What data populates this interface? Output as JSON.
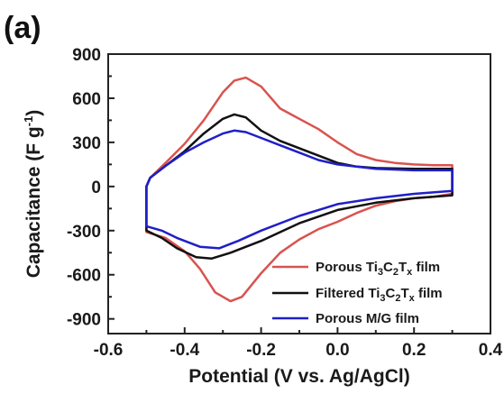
{
  "panel_label": "(a)",
  "chart_data": {
    "type": "line",
    "xlabel": "Potential (V vs. Ag/AgCl)",
    "ylabel": "Capacitance (F g-1)",
    "ylabel_parts": {
      "base": "Capacitance (F g",
      "sup": "-1",
      "end": ")"
    },
    "xlim": [
      -0.6,
      0.4
    ],
    "ylim": [
      -1000,
      900
    ],
    "xticks": [
      -0.6,
      -0.4,
      -0.2,
      0.0,
      0.2,
      0.4
    ],
    "xtick_labels": [
      "-0.6",
      "-0.4",
      "-0.2",
      "0.0",
      "0.2",
      "0.4"
    ],
    "yticks": [
      -900,
      -600,
      -300,
      0,
      300,
      600,
      900
    ],
    "ytick_labels": [
      "-900",
      "-600",
      "-300",
      "0",
      "300",
      "600",
      "900"
    ],
    "grid": false,
    "legend_position": "bottom-right",
    "series": [
      {
        "name": "Porous Ti3C2Tx film",
        "name_parts": {
          "pre": "Porous Ti",
          "s1": "3",
          "mid": "C",
          "s2": "2",
          "mid2": "T",
          "s3": "x",
          "post": " film"
        },
        "color": "#d9534f",
        "points": [
          [
            -0.5,
            -310
          ],
          [
            -0.5,
            0
          ],
          [
            -0.49,
            60
          ],
          [
            -0.45,
            160
          ],
          [
            -0.4,
            290
          ],
          [
            -0.35,
            450
          ],
          [
            -0.3,
            640
          ],
          [
            -0.27,
            720
          ],
          [
            -0.24,
            740
          ],
          [
            -0.2,
            680
          ],
          [
            -0.15,
            530
          ],
          [
            -0.1,
            460
          ],
          [
            -0.05,
            390
          ],
          [
            0.0,
            300
          ],
          [
            0.05,
            220
          ],
          [
            0.1,
            180
          ],
          [
            0.15,
            160
          ],
          [
            0.2,
            150
          ],
          [
            0.25,
            145
          ],
          [
            0.3,
            145
          ],
          [
            0.3,
            -50
          ],
          [
            0.25,
            -70
          ],
          [
            0.2,
            -80
          ],
          [
            0.15,
            -100
          ],
          [
            0.1,
            -130
          ],
          [
            0.05,
            -180
          ],
          [
            0.0,
            -240
          ],
          [
            -0.05,
            -290
          ],
          [
            -0.1,
            -360
          ],
          [
            -0.15,
            -450
          ],
          [
            -0.2,
            -590
          ],
          [
            -0.25,
            -750
          ],
          [
            -0.28,
            -780
          ],
          [
            -0.32,
            -720
          ],
          [
            -0.36,
            -560
          ],
          [
            -0.4,
            -440
          ],
          [
            -0.45,
            -350
          ],
          [
            -0.5,
            -310
          ]
        ]
      },
      {
        "name": "Filtered Ti3C2Tx film",
        "name_parts": {
          "pre": "Filtered Ti",
          "s1": "3",
          "mid": "C",
          "s2": "2",
          "mid2": "T",
          "s3": "x",
          "post": " film"
        },
        "color": "#111111",
        "points": [
          [
            -0.5,
            -300
          ],
          [
            -0.5,
            0
          ],
          [
            -0.49,
            60
          ],
          [
            -0.45,
            140
          ],
          [
            -0.4,
            240
          ],
          [
            -0.35,
            360
          ],
          [
            -0.3,
            460
          ],
          [
            -0.27,
            490
          ],
          [
            -0.24,
            470
          ],
          [
            -0.2,
            380
          ],
          [
            -0.15,
            310
          ],
          [
            -0.1,
            260
          ],
          [
            -0.05,
            210
          ],
          [
            0.0,
            160
          ],
          [
            0.05,
            135
          ],
          [
            0.1,
            125
          ],
          [
            0.2,
            120
          ],
          [
            0.3,
            120
          ],
          [
            0.3,
            -60
          ],
          [
            0.25,
            -70
          ],
          [
            0.2,
            -80
          ],
          [
            0.1,
            -110
          ],
          [
            0.0,
            -160
          ],
          [
            -0.1,
            -250
          ],
          [
            -0.2,
            -370
          ],
          [
            -0.28,
            -450
          ],
          [
            -0.33,
            -490
          ],
          [
            -0.37,
            -480
          ],
          [
            -0.42,
            -420
          ],
          [
            -0.46,
            -350
          ],
          [
            -0.5,
            -300
          ]
        ]
      },
      {
        "name": "Porous M/G film",
        "color": "#1f1fc8",
        "points": [
          [
            -0.5,
            -270
          ],
          [
            -0.5,
            0
          ],
          [
            -0.49,
            60
          ],
          [
            -0.45,
            140
          ],
          [
            -0.4,
            230
          ],
          [
            -0.35,
            300
          ],
          [
            -0.3,
            360
          ],
          [
            -0.27,
            380
          ],
          [
            -0.24,
            370
          ],
          [
            -0.2,
            330
          ],
          [
            -0.15,
            280
          ],
          [
            -0.1,
            230
          ],
          [
            -0.05,
            180
          ],
          [
            0.0,
            150
          ],
          [
            0.1,
            120
          ],
          [
            0.2,
            110
          ],
          [
            0.3,
            110
          ],
          [
            0.3,
            -30
          ],
          [
            0.2,
            -50
          ],
          [
            0.1,
            -80
          ],
          [
            0.0,
            -120
          ],
          [
            -0.1,
            -200
          ],
          [
            -0.2,
            -300
          ],
          [
            -0.26,
            -370
          ],
          [
            -0.31,
            -420
          ],
          [
            -0.36,
            -410
          ],
          [
            -0.42,
            -350
          ],
          [
            -0.46,
            -300
          ],
          [
            -0.5,
            -270
          ]
        ]
      }
    ]
  }
}
